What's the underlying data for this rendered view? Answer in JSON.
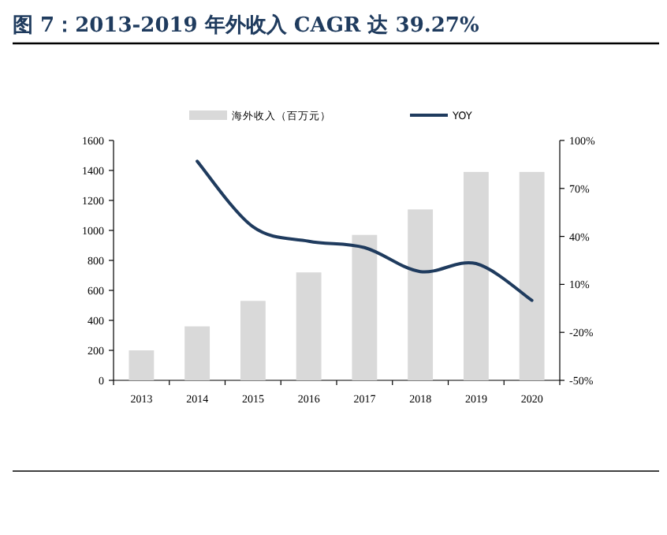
{
  "chart_data": {
    "type": "bar",
    "title": "图 7：2013-2019 年外收入 CAGR 达 39.27%",
    "categories": [
      "2013",
      "2014",
      "2015",
      "2016",
      "2017",
      "2018",
      "2019",
      "2020"
    ],
    "series": [
      {
        "name": "海外收入（百万元）",
        "color": "#d9d9d9",
        "values": [
          200,
          360,
          530,
          720,
          970,
          1140,
          1390,
          1390
        ]
      },
      {
        "name": "YOY",
        "type": "line",
        "axis": "y2",
        "color": "#1f3b5e",
        "values": [
          null,
          87,
          46,
          37,
          33,
          18,
          23,
          0
        ]
      }
    ],
    "ylim": [
      0,
      1600
    ],
    "yticks": [
      0,
      200,
      400,
      600,
      800,
      1000,
      1200,
      1400,
      1600
    ],
    "y2lim": [
      -50,
      100
    ],
    "y2ticks": [
      {
        "value": -50,
        "label": "-50%"
      },
      {
        "value": -20,
        "label": "-20%"
      },
      {
        "value": 10,
        "label": "10%"
      },
      {
        "value": 40,
        "label": "40%"
      },
      {
        "value": 70,
        "label": "70%"
      },
      {
        "value": 100,
        "label": "100%"
      }
    ],
    "legend": "top"
  }
}
